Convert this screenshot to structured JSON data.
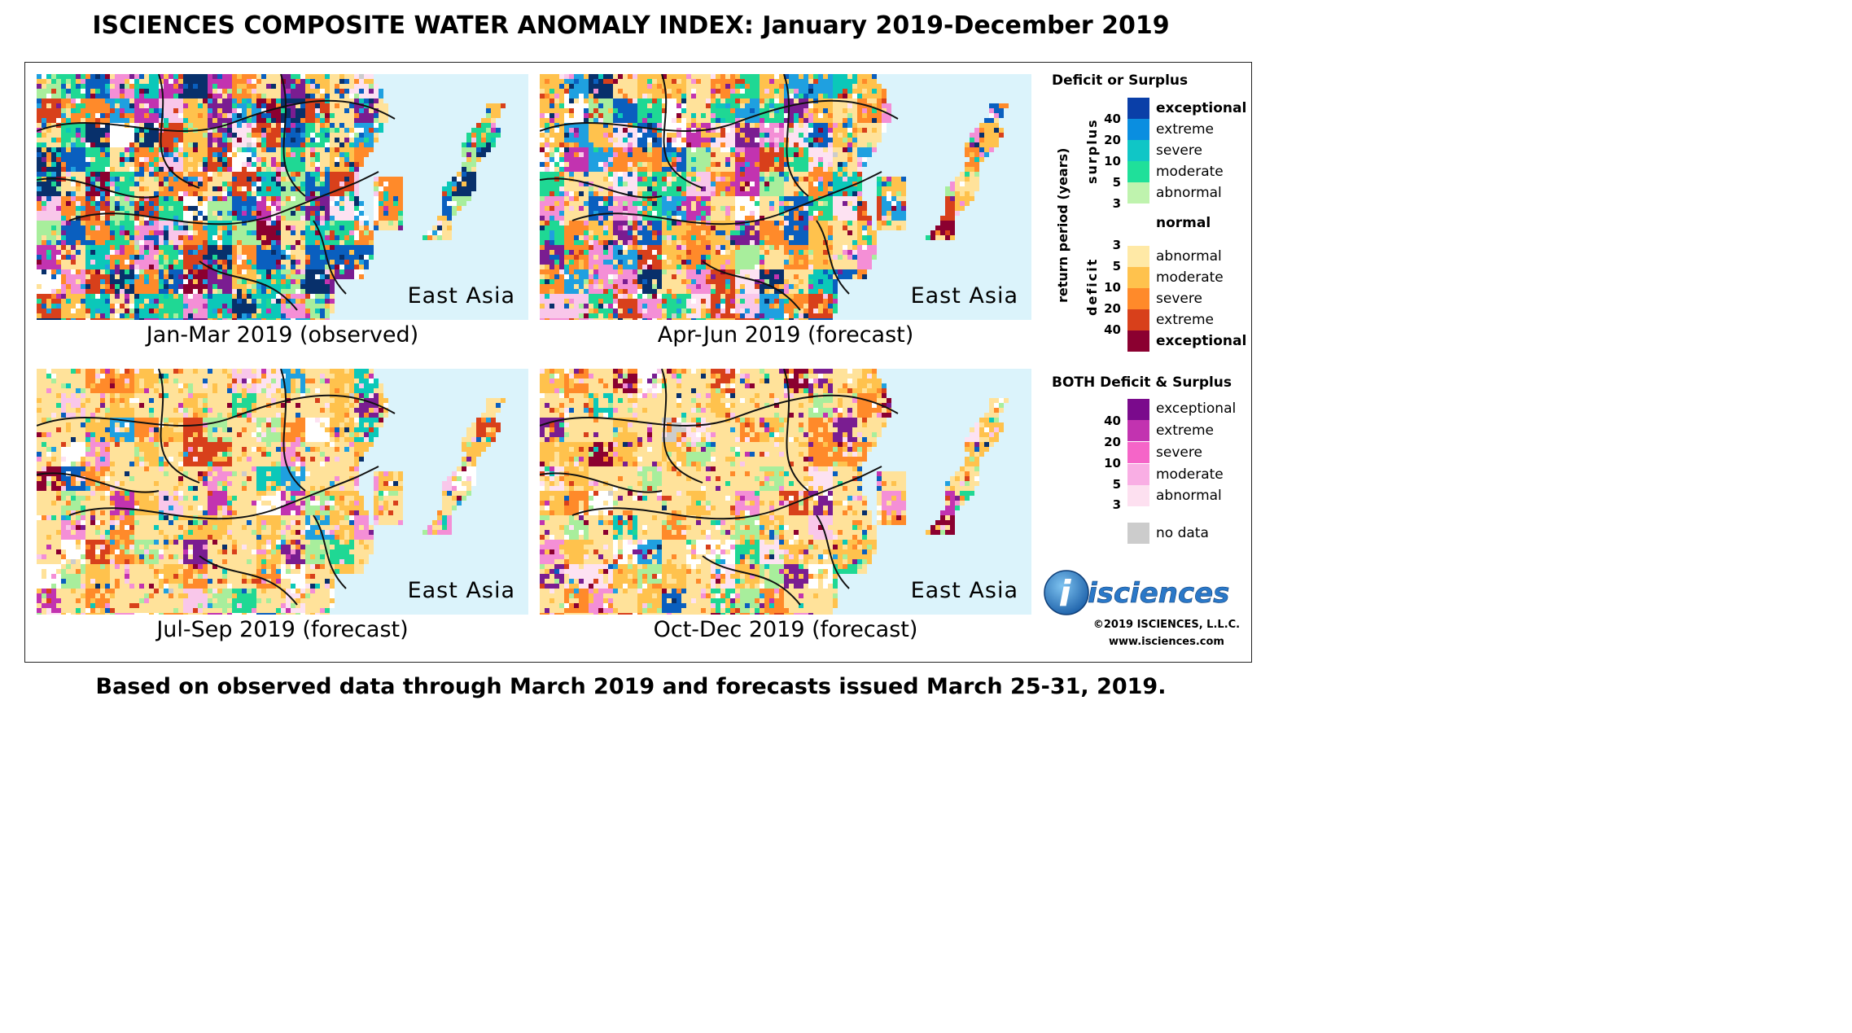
{
  "title": "ISCIENCES COMPOSITE WATER ANOMALY INDEX: January 2019-December 2019",
  "panels": [
    {
      "region": "East Asia",
      "caption": "Jan-Mar 2019 (observed)",
      "palette": [
        "#08306b",
        "#0a5fbf",
        "#1fa0e0",
        "#0bc8b9",
        "#1fd894",
        "#a8ee9c",
        "#ffffff",
        "#ffe29a",
        "#ffc24d",
        "#ff8a2a",
        "#d8401b",
        "#8b0030",
        "#7a1d91",
        "#c233b0",
        "#f48fd6",
        "#f9c7ea",
        "#fde2f2",
        "#cccccc"
      ],
      "weights": [
        10,
        16,
        10,
        12,
        10,
        8,
        12,
        12,
        14,
        14,
        9,
        6,
        6,
        4,
        4,
        3,
        2,
        0.4
      ]
    },
    {
      "region": "East Asia",
      "caption": "Apr-Jun 2019 (forecast)",
      "palette": [
        "#08306b",
        "#0a5fbf",
        "#1fa0e0",
        "#0bc8b9",
        "#1fd894",
        "#a8ee9c",
        "#ffffff",
        "#ffe29a",
        "#ffc24d",
        "#ff8a2a",
        "#d8401b",
        "#8b0030",
        "#7a1d91",
        "#c233b0",
        "#f48fd6",
        "#f9c7ea",
        "#fde2f2",
        "#cccccc"
      ],
      "weights": [
        4,
        8,
        8,
        7,
        9,
        6,
        8,
        18,
        20,
        16,
        9,
        4,
        3,
        5,
        8,
        6,
        4,
        0.4
      ]
    },
    {
      "region": "East Asia",
      "caption": "Jul-Sep 2019 (forecast)",
      "palette": [
        "#08306b",
        "#0a5fbf",
        "#1fa0e0",
        "#0bc8b9",
        "#1fd894",
        "#a8ee9c",
        "#ffffff",
        "#ffe29a",
        "#ffc24d",
        "#ff8a2a",
        "#d8401b",
        "#8b0030",
        "#7a1d91",
        "#c233b0",
        "#f48fd6",
        "#f9c7ea",
        "#fde2f2",
        "#cccccc"
      ],
      "weights": [
        1,
        3,
        3,
        2,
        3,
        9,
        7,
        44,
        18,
        10,
        4,
        2,
        1,
        2,
        4,
        4,
        3,
        0.3
      ]
    },
    {
      "region": "East Asia",
      "caption": "Oct-Dec 2019 (forecast)",
      "palette": [
        "#08306b",
        "#0a5fbf",
        "#1fa0e0",
        "#0bc8b9",
        "#1fd894",
        "#a8ee9c",
        "#ffffff",
        "#ffe29a",
        "#ffc24d",
        "#ff8a2a",
        "#d8401b",
        "#8b0030",
        "#7a1d91",
        "#c233b0",
        "#f48fd6",
        "#f9c7ea",
        "#fde2f2",
        "#cccccc"
      ],
      "weights": [
        1,
        2,
        2,
        2,
        2,
        7,
        8,
        46,
        18,
        10,
        4,
        3,
        4,
        2,
        4,
        4,
        3,
        0.3
      ]
    }
  ],
  "legend": {
    "deficit_surplus_heading": "Deficit or Surplus",
    "axis_label": "return period (years)",
    "surplus_label": "surplus",
    "deficit_label": "deficit",
    "surplus": [
      {
        "label": "exceptional",
        "color": "#0a3fa8",
        "bold": true
      },
      {
        "label": "extreme",
        "color": "#0a8ee0"
      },
      {
        "label": "severe",
        "color": "#10c6c6"
      },
      {
        "label": "moderate",
        "color": "#1fe09a"
      },
      {
        "label": "abnormal",
        "color": "#bff3ae"
      }
    ],
    "normal_label": "normal",
    "deficit": [
      {
        "label": "abnormal",
        "color": "#ffe9a6"
      },
      {
        "label": "moderate",
        "color": "#ffc24d"
      },
      {
        "label": "severe",
        "color": "#ff8a2a"
      },
      {
        "label": "extreme",
        "color": "#d8401b"
      },
      {
        "label": "exceptional",
        "color": "#8b0030",
        "bold": true
      }
    ],
    "surplus_ticks": [
      "40",
      "20",
      "10",
      "5",
      "3"
    ],
    "deficit_ticks": [
      "3",
      "5",
      "10",
      "20",
      "40"
    ],
    "both_heading": "BOTH Deficit & Surplus",
    "both": [
      {
        "label": "exceptional",
        "color": "#7a0a8c"
      },
      {
        "label": "extreme",
        "color": "#c233b0"
      },
      {
        "label": "severe",
        "color": "#f565c8"
      },
      {
        "label": "moderate",
        "color": "#f9aee4"
      },
      {
        "label": "abnormal",
        "color": "#fde0f0"
      }
    ],
    "both_ticks": [
      "40",
      "20",
      "10",
      "5",
      "3"
    ],
    "no_data_label": "no data",
    "no_data_color": "#cccccc"
  },
  "logo": {
    "text": "isciences",
    "letter": "i"
  },
  "copyright": "©2019 ISCIENCES, L.L.C.",
  "website": "www.isciences.com",
  "footer": "Based on observed data through March 2019 and forecasts issued March 25-31, 2019."
}
